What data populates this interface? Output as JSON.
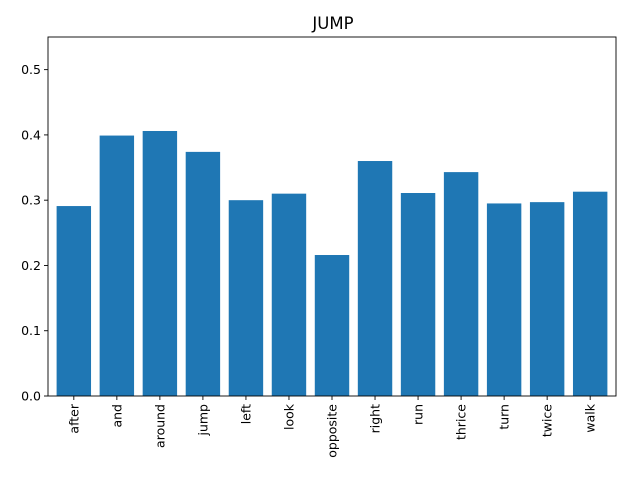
{
  "chart_data": {
    "type": "bar",
    "title": "JUMP",
    "xlabel": "",
    "ylabel": "",
    "categories": [
      "after",
      "and",
      "around",
      "jump",
      "left",
      "look",
      "opposite",
      "right",
      "run",
      "thrice",
      "turn",
      "twice",
      "walk"
    ],
    "values": [
      0.291,
      0.399,
      0.406,
      0.374,
      0.3,
      0.31,
      0.216,
      0.36,
      0.311,
      0.343,
      0.295,
      0.297,
      0.313
    ],
    "ylim": [
      0,
      0.55
    ],
    "yticks": [
      0.0,
      0.1,
      0.2,
      0.3,
      0.4,
      0.5
    ],
    "ytick_labels": [
      "0.0",
      "0.1",
      "0.2",
      "0.3",
      "0.4",
      "0.5"
    ],
    "bar_color": "#1f77b4",
    "grid": false,
    "legend": "none"
  }
}
